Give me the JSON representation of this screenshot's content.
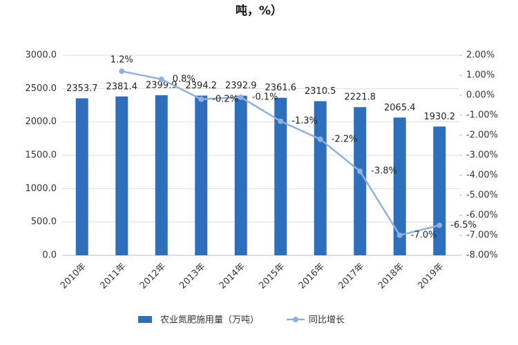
{
  "chart_data": {
    "type": "bar",
    "title": "吨，%）",
    "categories": [
      "2010年",
      "2011年",
      "2012年",
      "2013年",
      "2014年",
      "2015年",
      "2016年",
      "2017年",
      "2018年",
      "2019年"
    ],
    "series": [
      {
        "name": "农业氮肥施用量（万吨）",
        "color": "#2e6fbd",
        "type": "bar",
        "values": [
          2353.7,
          2381.4,
          2399.9,
          2394.2,
          2392.9,
          2361.6,
          2310.5,
          2221.8,
          2065.4,
          1930.2
        ]
      },
      {
        "name": "同比增长",
        "color": "#8fb0de",
        "type": "line",
        "axis": "y2",
        "values": [
          null,
          1.2,
          0.8,
          -0.2,
          -0.1,
          -1.3,
          -2.2,
          -3.8,
          -7.0,
          -6.5
        ],
        "value_labels": [
          null,
          "1.2%",
          "0.8%",
          "-0.2%",
          "-0.1%",
          "-1.3%",
          "-2.2%",
          "-3.8%",
          "-7.0%",
          "-6.5%"
        ]
      }
    ],
    "ylim": [
      0,
      3000
    ],
    "yticks": [
      {
        "value": 0,
        "label": "0.0"
      },
      {
        "value": 500,
        "label": "500.0"
      },
      {
        "value": 1000,
        "label": "1000.0"
      },
      {
        "value": 1500,
        "label": "1500.0"
      },
      {
        "value": 2000,
        "label": "2000.0"
      },
      {
        "value": 2500,
        "label": "2500.0"
      },
      {
        "value": 3000,
        "label": "3000.0"
      }
    ],
    "y2lim": [
      -8,
      2
    ],
    "y2ticks": [
      {
        "value": -8,
        "label": "-8.00%"
      },
      {
        "value": -7,
        "label": "-7.00%"
      },
      {
        "value": -6,
        "label": "-6.00%"
      },
      {
        "value": -5,
        "label": "-5.00%"
      },
      {
        "value": -4,
        "label": "-4.00%"
      },
      {
        "value": -3,
        "label": "-3.00%"
      },
      {
        "value": -2,
        "label": "-2.00%"
      },
      {
        "value": -1,
        "label": "-1.00%"
      },
      {
        "value": 0,
        "label": "0.00%"
      },
      {
        "value": 1,
        "label": "1.00%"
      },
      {
        "value": 2,
        "label": "2.00%"
      }
    ],
    "grid": true
  }
}
